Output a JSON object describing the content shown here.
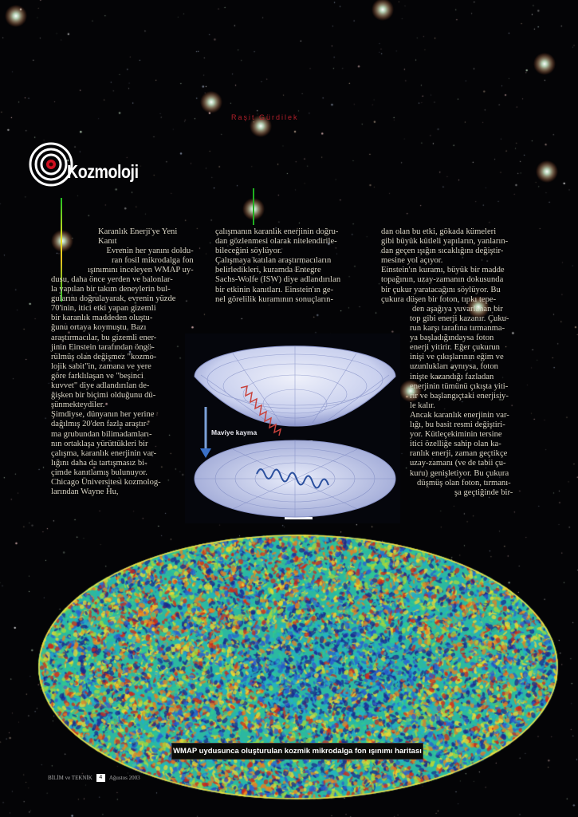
{
  "article": {
    "author": "Raşit Gürdilek",
    "section": "Kozmoloji",
    "column1": {
      "heading": "Karanlık Enerji'ye Yeni\nKanıt",
      "intro": "Evrenin her yanını doldu-\nran fosil mikrodalga fon\nışınımını inceleyen WMAP uy-",
      "body": "dusu, daha önce yerden ve balonlar-\nla yapılan bir takım deneylerin bul-\ngularını doğrulayarak, evrenin yüzde\n70'inin, itici etki yapan gizemli\nbir karanlık maddeden oluştu-\nğunu ortaya koymuştu. Bazı\naraştırmacılar, bu gizemli ener-\njinin Einstein tarafından öngö-\nrülmüş olan değişmez \"kozmo-\nlojik sabit\"in, zamana ve yere\ngöre farklılaşan ve \"beşinci\nkuvvet\" diye adlandırılan de-\nğişken bir biçimi olduğunu dü-\nşünmekteydiler.\nŞimdiyse, dünyanın her yerine\ndağılmış 20'den fazla araştır-\nma grubundan bilimadamları-\nnın ortaklaşa yürüttükleri bir\nçalışma, karanlık enerjinin var-\nlığını daha da tartışmasız bi-\nçimde kanıtlamış bulunuyor.\nChicago Üniversitesi kozmolog-\nlarından Wayne Hu,"
    },
    "column2": "çalışmanın karanlık enerjinin doğru-\ndan gözlenmesi olarak nitelendirile-\nbileceğini söylüyor.\nÇalışmaya katılan araştırmacıların\nbelirledikleri, kuramda Entegre\nSachs-Wolfe (ISW) diye adlandırılan\nbir etkinin kanıtları. Einstein'ın ge-\nnel görelilik kuramının sonuçların-",
    "column3": {
      "top": "dan olan bu etki, gökada kümeleri\ngibi büyük kütleli yapıların, yanların-\ndan geçen ışığın sıcaklığını değiştir-\nmesine yol açıyor.\nEinstein'ın kuramı, büyük bir madde\ntopağının, uzay-zamanın dokusunda\nbir çukur yaratacağını söylüyor. Bu\nçukura düşen bir foton, tıpkı tepe-",
      "wrap1": "den aşağıya yuvarlanan bir",
      "middle": "top gibi enerji kazanır. Çuku-\nrun karşı tarafına tırmanma-\nya başladığındaysa foton\nenerji yitirir. Eğer çukurun\ninişi ve çıkışlarının eğim ve\nuzunlukları aynıysa, foton\ninişte kazandığı fazladan\nenerjinin tümünü çıkışta yiti-\nrir ve başlangıçtaki enerjisiy-\nle kalır.\nAncak karanlık enerjinin var-\nlığı, bu basit resmi değiştiri-\nyor. Kütleçekiminin tersine\nitici özelliğe sahip olan ka-\nranlık enerji, zaman geçtikçe\nuzay-zamanı (ve de tabii çu-\nkuru) genişletiyor. Bu çukura",
      "wrap2": "düşmüş olan foton, tırmanı-",
      "wrap3": "şa geçtiğinde bir-"
    },
    "figure": {
      "label": "Maviye kayma",
      "colors": {
        "redshift_wave": "#c8423c",
        "blueshift_wave": "#2a4f9e",
        "surface": "#c9d0ee"
      }
    },
    "map_caption": "WMAP uydusunca oluşturulan kozmik mikrodalga fon ışınımı haritası",
    "map_colors": [
      "#1a2a8e",
      "#2a5fd0",
      "#22b0c8",
      "#30c890",
      "#a8d838",
      "#f0d830",
      "#e88020",
      "#d02818"
    ]
  },
  "footer": {
    "magazine": "BİLİM ve TEKNİK",
    "page": "4",
    "date": "Ağustos 2003"
  },
  "colors": {
    "background": "#000000",
    "author": "#b0202a",
    "section_target": "#d01020"
  }
}
